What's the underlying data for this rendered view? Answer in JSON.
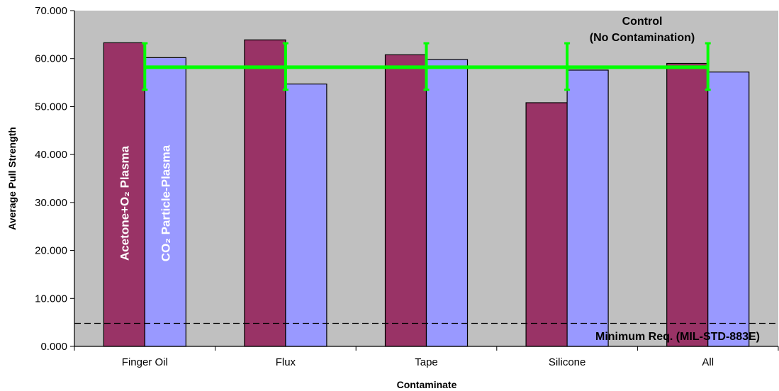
{
  "chart_data": {
    "type": "bar",
    "title": "",
    "xlabel": "Contaminate",
    "ylabel": "Average Pull Strength",
    "ylim": [
      0,
      70
    ],
    "yticks": [
      "0.000",
      "10.000",
      "20.000",
      "30.000",
      "40.000",
      "50.000",
      "60.000",
      "70.000"
    ],
    "categories": [
      "Finger Oil",
      "Flux",
      "Tape",
      "Silicone",
      "All"
    ],
    "series": [
      {
        "name": "Acetone+O₂ Plasma",
        "values": [
          63.3,
          63.9,
          60.8,
          50.8,
          59.0
        ],
        "color": "#993366"
      },
      {
        "name": "CO₂ Particle-Plasma",
        "values": [
          60.2,
          54.7,
          59.8,
          57.6,
          57.2
        ],
        "color": "#9999ff"
      }
    ],
    "control_line": {
      "label_line1": "Control",
      "label_line2": "(No Contamination)",
      "value": 58.2,
      "error_low": 53.5,
      "error_high": 63.2,
      "color": "#00ff00"
    },
    "minimum_line": {
      "label": "Minimum Req. (MIL-STD-883E)",
      "value": 4.8
    },
    "plot_background": "#c0c0c0",
    "grid": false,
    "legend": "none"
  }
}
